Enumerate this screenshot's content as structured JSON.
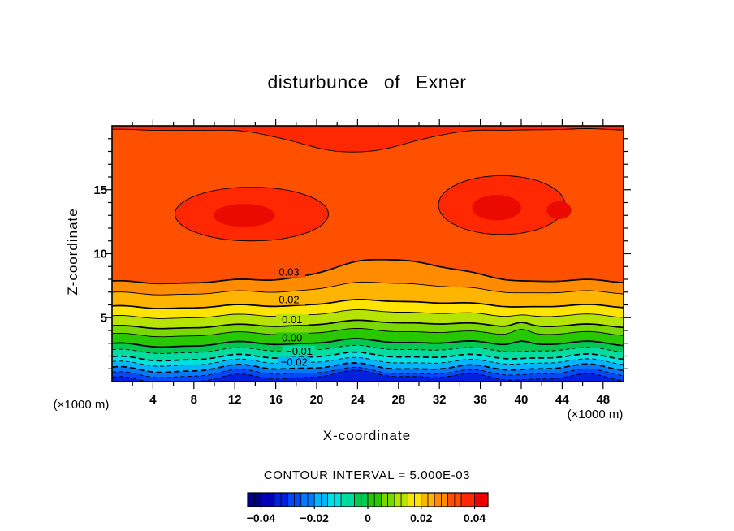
{
  "page": {
    "background": "#ffffff",
    "line_color": "#000000"
  },
  "chart_data": {
    "type": "heatmap",
    "subtype": "filled_contour",
    "title": "disturbunce of Exner",
    "xlabel": "X-coordinate",
    "ylabel": "Z-coordinate",
    "x_unit": "(×1000 m)",
    "y_unit": "(×1000 m)",
    "contour_interval_text": "CONTOUR INTERVAL = 5.000E-03",
    "contour_interval": 0.005,
    "xlim": [
      0,
      50
    ],
    "ylim": [
      0,
      20
    ],
    "x_ticks": [
      4,
      8,
      12,
      16,
      20,
      24,
      28,
      32,
      36,
      40,
      44,
      48
    ],
    "x_minor_step": 2,
    "y_ticks": [
      5,
      10,
      15
    ],
    "y_minor_step": 1,
    "fill_levels": [
      -0.04,
      -0.035,
      -0.03,
      -0.025,
      -0.02,
      -0.015,
      -0.01,
      -0.005,
      0,
      0.005,
      0.01,
      0.015,
      0.02,
      0.025,
      0.03,
      0.035,
      0.04,
      0.045
    ],
    "fill_colors": [
      "#000080",
      "#0000b4",
      "#0020e0",
      "#0048ff",
      "#0078ff",
      "#00b4ff",
      "#00e0e0",
      "#00dca0",
      "#00c850",
      "#28c800",
      "#78d800",
      "#b4e400",
      "#ffe400",
      "#ffb400",
      "#ff8c00",
      "#ff5000",
      "#ff2800",
      "#f00000",
      "#c80000"
    ],
    "contours": [
      {
        "level": 0.03,
        "z": 7.8,
        "hump": 1.85,
        "ripple": 0.2,
        "spike": 0,
        "thick": true,
        "dashed": false,
        "label": "0.03",
        "label_x": 17.3
      },
      {
        "level": 0.025,
        "z": 6.92,
        "hump": 0.9,
        "ripple": 0.2,
        "spike": 0,
        "thick": false,
        "dashed": false
      },
      {
        "level": 0.02,
        "z": 5.85,
        "hump": 0.55,
        "ripple": 0.2,
        "spike": 0,
        "thick": true,
        "dashed": false,
        "label": "0.02",
        "label_x": 17.3
      },
      {
        "level": 0.015,
        "z": 5.08,
        "hump": 0.5,
        "ripple": 0.22,
        "spike": 0.15,
        "thick": false,
        "dashed": false
      },
      {
        "level": 0.01,
        "z": 4.3,
        "hump": 0.45,
        "ripple": 0.22,
        "spike": 0.35,
        "thick": true,
        "dashed": false,
        "label": "0.01",
        "label_x": 17.6
      },
      {
        "level": 0.005,
        "z": 3.68,
        "hump": 0.4,
        "ripple": 0.25,
        "spike": 0.45,
        "thick": false,
        "dashed": false
      },
      {
        "level": 0.0,
        "z": 2.9,
        "hump": 0.35,
        "ripple": 0.28,
        "spike": 0.3,
        "thick": true,
        "dashed": false,
        "label": "0.00",
        "label_x": 17.6
      },
      {
        "level": -0.005,
        "z": 2.4,
        "hump": 0.3,
        "ripple": 0.3,
        "spike": 0,
        "thick": false,
        "dashed": true
      },
      {
        "level": -0.01,
        "z": 1.85,
        "hump": 0.3,
        "ripple": 0.33,
        "spike": 0,
        "thick": true,
        "dashed": true,
        "label": "−0.01",
        "label_x": 18.3
      },
      {
        "level": -0.015,
        "z": 1.45,
        "hump": 0.25,
        "ripple": 0.36,
        "spike": 0,
        "thick": false,
        "dashed": true
      },
      {
        "level": -0.02,
        "z": 1.0,
        "hump": 0.25,
        "ripple": 0.4,
        "spike": 0,
        "thick": true,
        "dashed": true,
        "label": "−0.02",
        "label_x": 17.8
      },
      {
        "level": -0.025,
        "z": 0.6,
        "hump": 0.3,
        "ripple": 0.42,
        "spike": 0,
        "thick": false,
        "dashed": true
      },
      {
        "level": -0.03,
        "z": 0.2,
        "hump": 0.5,
        "ripple": 0.45,
        "spike": 0,
        "thick": false,
        "dashed": true
      }
    ],
    "upper_contour": {
      "level": 0.035,
      "z": 19.7,
      "dip": 1.8,
      "center": 23.5,
      "width": 7,
      "fill": "#ff2800"
    },
    "blobs": [
      {
        "level": 0.035,
        "cx": 13.65,
        "cz": 13.1,
        "rx": 7.5,
        "rz": 2.1,
        "fill": "#ff2800"
      },
      {
        "level": 0.035,
        "cx": 38.1,
        "cz": 13.8,
        "rx": 6.2,
        "rz": 2.3,
        "fill": "#ff2800"
      }
    ],
    "cores": [
      {
        "level": 0.04,
        "cx": 12.9,
        "cz": 13.0,
        "rx": 3.0,
        "rz": 0.9,
        "fill": "#ea0a00"
      },
      {
        "level": 0.04,
        "cx": 37.6,
        "cz": 13.6,
        "rx": 2.4,
        "rz": 1.0,
        "fill": "#ea0a00"
      },
      {
        "level": 0.04,
        "cx": 43.7,
        "cz": 13.4,
        "rx": 1.2,
        "rz": 0.7,
        "fill": "#ea0a00"
      }
    ],
    "colorbar": {
      "min": -0.045,
      "max": 0.045,
      "step": 0.0025,
      "tick_values": [
        -0.04,
        -0.02,
        0,
        0.02,
        0.04
      ],
      "tick_labels": [
        "−0.04",
        "−0.02",
        "0",
        "0.02",
        "0.04"
      ]
    }
  }
}
